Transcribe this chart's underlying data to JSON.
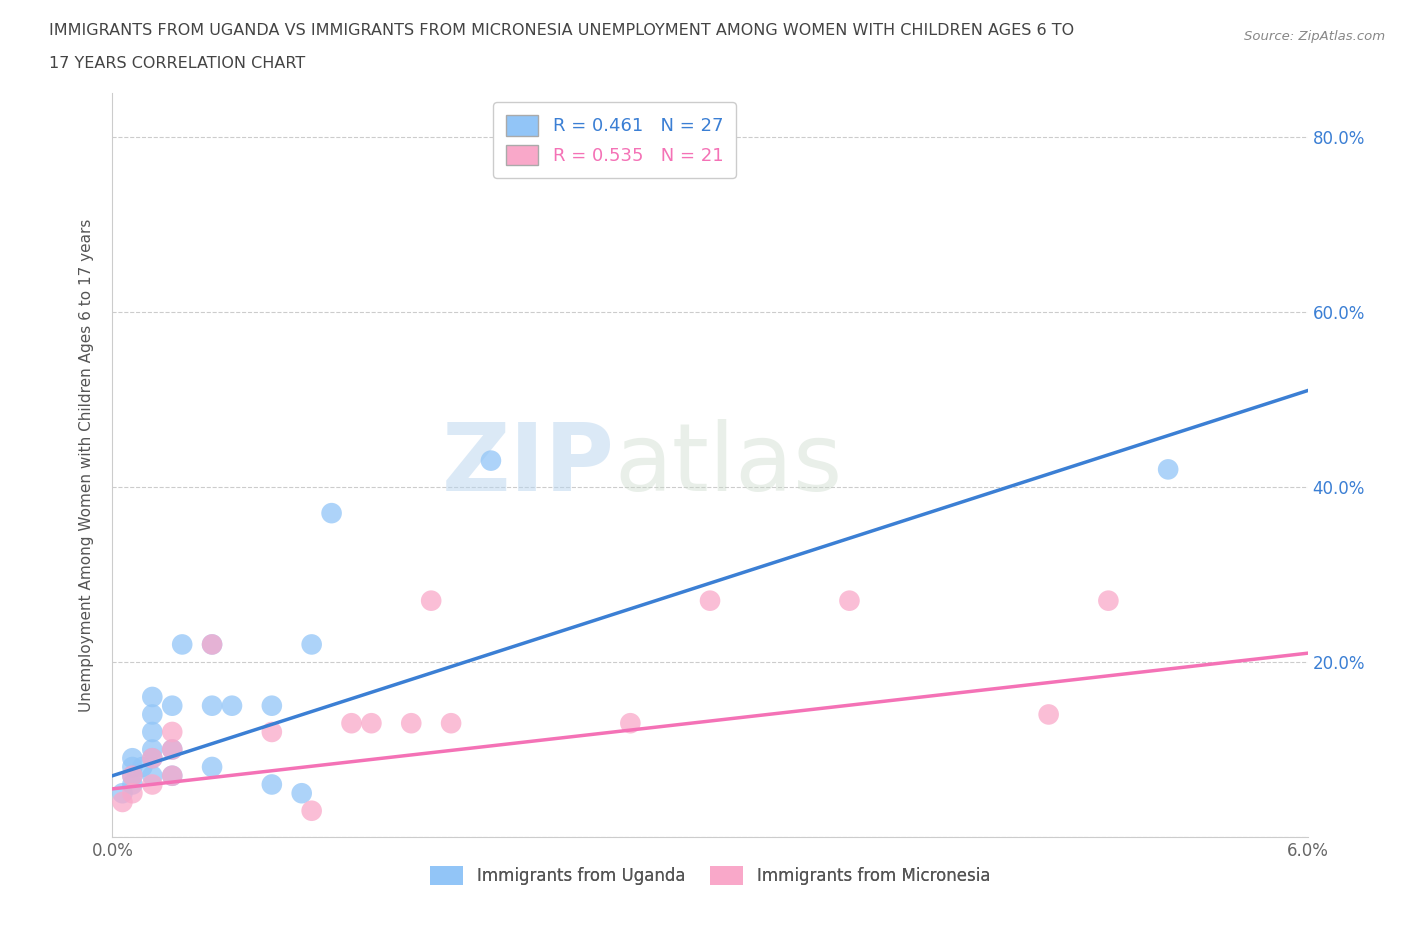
{
  "title_line1": "IMMIGRANTS FROM UGANDA VS IMMIGRANTS FROM MICRONESIA UNEMPLOYMENT AMONG WOMEN WITH CHILDREN AGES 6 TO",
  "title_line2": "17 YEARS CORRELATION CHART",
  "source": "Source: ZipAtlas.com",
  "xlabel": "",
  "ylabel": "Unemployment Among Women with Children Ages 6 to 17 years",
  "xlim": [
    0.0,
    0.06
  ],
  "ylim": [
    0.0,
    0.85
  ],
  "x_ticks": [
    0.0,
    0.01,
    0.02,
    0.03,
    0.04,
    0.05,
    0.06
  ],
  "x_tick_labels": [
    "0.0%",
    "",
    "",
    "",
    "",
    "",
    "6.0%"
  ],
  "y_ticks": [
    0.0,
    0.2,
    0.4,
    0.6,
    0.8
  ],
  "y_tick_labels": [
    "",
    "20.0%",
    "40.0%",
    "60.0%",
    "80.0%"
  ],
  "uganda_R": 0.461,
  "uganda_N": 27,
  "micronesia_R": 0.535,
  "micronesia_N": 21,
  "uganda_color": "#92C5F7",
  "micronesia_color": "#F9A8C9",
  "uganda_line_color": "#3B7FD4",
  "micronesia_line_color": "#F472B6",
  "watermark_zip": "ZIP",
  "watermark_atlas": "atlas",
  "uganda_x": [
    0.0005,
    0.001,
    0.001,
    0.001,
    0.001,
    0.0015,
    0.002,
    0.002,
    0.002,
    0.002,
    0.002,
    0.002,
    0.003,
    0.003,
    0.003,
    0.0035,
    0.005,
    0.005,
    0.005,
    0.006,
    0.008,
    0.008,
    0.0095,
    0.01,
    0.011,
    0.019,
    0.053
  ],
  "uganda_y": [
    0.05,
    0.06,
    0.07,
    0.08,
    0.09,
    0.08,
    0.07,
    0.09,
    0.1,
    0.12,
    0.14,
    0.16,
    0.07,
    0.1,
    0.15,
    0.22,
    0.08,
    0.15,
    0.22,
    0.15,
    0.06,
    0.15,
    0.05,
    0.22,
    0.37,
    0.43,
    0.42
  ],
  "micronesia_x": [
    0.0005,
    0.001,
    0.001,
    0.002,
    0.002,
    0.003,
    0.003,
    0.003,
    0.005,
    0.008,
    0.01,
    0.012,
    0.013,
    0.015,
    0.016,
    0.017,
    0.026,
    0.03,
    0.037,
    0.047,
    0.05
  ],
  "micronesia_y": [
    0.04,
    0.05,
    0.07,
    0.06,
    0.09,
    0.07,
    0.1,
    0.12,
    0.22,
    0.12,
    0.03,
    0.13,
    0.13,
    0.13,
    0.27,
    0.13,
    0.13,
    0.27,
    0.27,
    0.14,
    0.27
  ],
  "uganda_line_x0": 0.0,
  "uganda_line_y0": 0.07,
  "uganda_line_x1": 0.06,
  "uganda_line_y1": 0.51,
  "micronesia_line_x0": 0.0,
  "micronesia_line_y0": 0.055,
  "micronesia_line_x1": 0.06,
  "micronesia_line_y1": 0.21,
  "background_color": "#FFFFFF",
  "grid_color": "#CCCCCC"
}
